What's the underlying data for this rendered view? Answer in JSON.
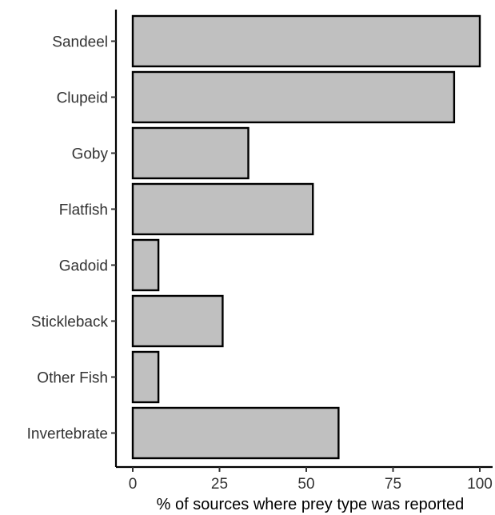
{
  "chart_data": {
    "type": "bar",
    "orientation": "horizontal",
    "title": "",
    "xlabel": "% of sources where prey type was reported",
    "ylabel": "",
    "categories": [
      "Sandeel",
      "Clupeid",
      "Goby",
      "Flatfish",
      "Gadoid",
      "Stickleback",
      "Other Fish",
      "Invertebrate"
    ],
    "values": [
      100,
      92.6,
      33.3,
      51.9,
      7.4,
      25.9,
      7.4,
      59.3
    ],
    "xlim": [
      0,
      100
    ],
    "xticks": [
      "0",
      "25",
      "50",
      "75",
      "100"
    ],
    "grid": false,
    "legend": "none",
    "bar_fill": "#c0c0c0",
    "bar_stroke": "#000000"
  }
}
